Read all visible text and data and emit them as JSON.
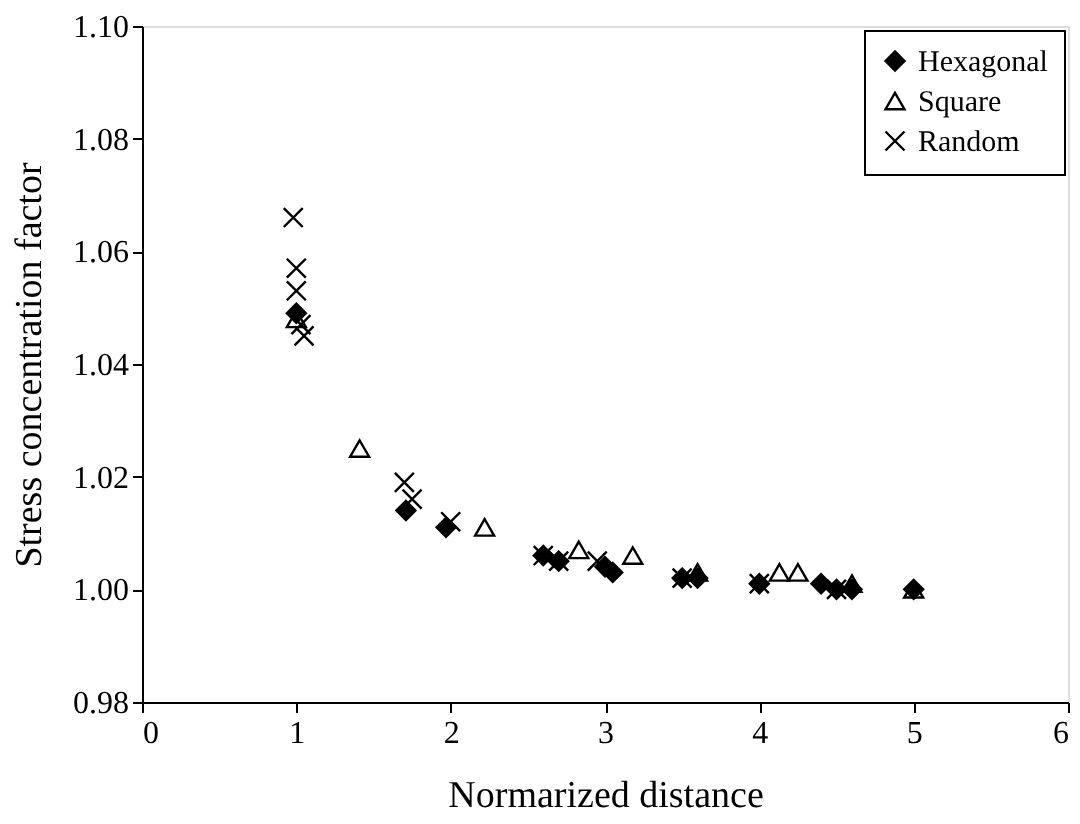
{
  "chart_data": {
    "type": "scatter",
    "xlabel": "Normarized distance",
    "ylabel": "Stress concentration factor",
    "xlim": [
      0,
      6
    ],
    "xticks": [
      0,
      1,
      2,
      3,
      4,
      5,
      6
    ],
    "ylim": [
      0.98,
      1.1
    ],
    "yticks": [
      {
        "value": 0.98,
        "label": "0.98"
      },
      {
        "value": 1.0,
        "label": "1.00"
      },
      {
        "value": 1.02,
        "label": "1.02"
      },
      {
        "value": 1.04,
        "label": "1.04"
      },
      {
        "value": 1.06,
        "label": "1.06"
      },
      {
        "value": 1.08,
        "label": "1.08"
      },
      {
        "value": 1.1,
        "label": "1.10"
      }
    ],
    "grid": false,
    "legend": "top right",
    "series": [
      {
        "name": "Hexagonal",
        "color": "#000000",
        "marker": "diamond",
        "x": [
          1.0,
          1.71,
          1.97,
          2.6,
          2.7,
          3.0,
          3.05,
          3.5,
          3.6,
          4.0,
          4.4,
          4.5,
          4.6,
          5.0
        ],
        "values": [
          1.049,
          1.014,
          1.011,
          1.006,
          1.005,
          1.004,
          1.003,
          1.002,
          1.002,
          1.001,
          1.001,
          1.0,
          1.0,
          1.0
        ]
      },
      {
        "name": "Square",
        "color": "#000000",
        "marker": "triangle",
        "x": [
          1.0,
          1.41,
          2.22,
          2.83,
          3.18,
          3.6,
          4.13,
          4.25,
          4.6,
          5.0
        ],
        "values": [
          1.048,
          1.025,
          1.011,
          1.007,
          1.006,
          1.003,
          1.003,
          1.003,
          1.001,
          1.0
        ]
      },
      {
        "name": "Random",
        "color": "#000000",
        "marker": "cross",
        "x": [
          0.98,
          1.0,
          1.0,
          1.03,
          1.05,
          1.7,
          1.75,
          2.0,
          2.6,
          2.7,
          2.95,
          3.5,
          4.0,
          4.5
        ],
        "values": [
          1.066,
          1.057,
          1.053,
          1.047,
          1.045,
          1.019,
          1.016,
          1.012,
          1.006,
          1.005,
          1.005,
          1.002,
          1.001,
          1.0
        ]
      }
    ]
  }
}
